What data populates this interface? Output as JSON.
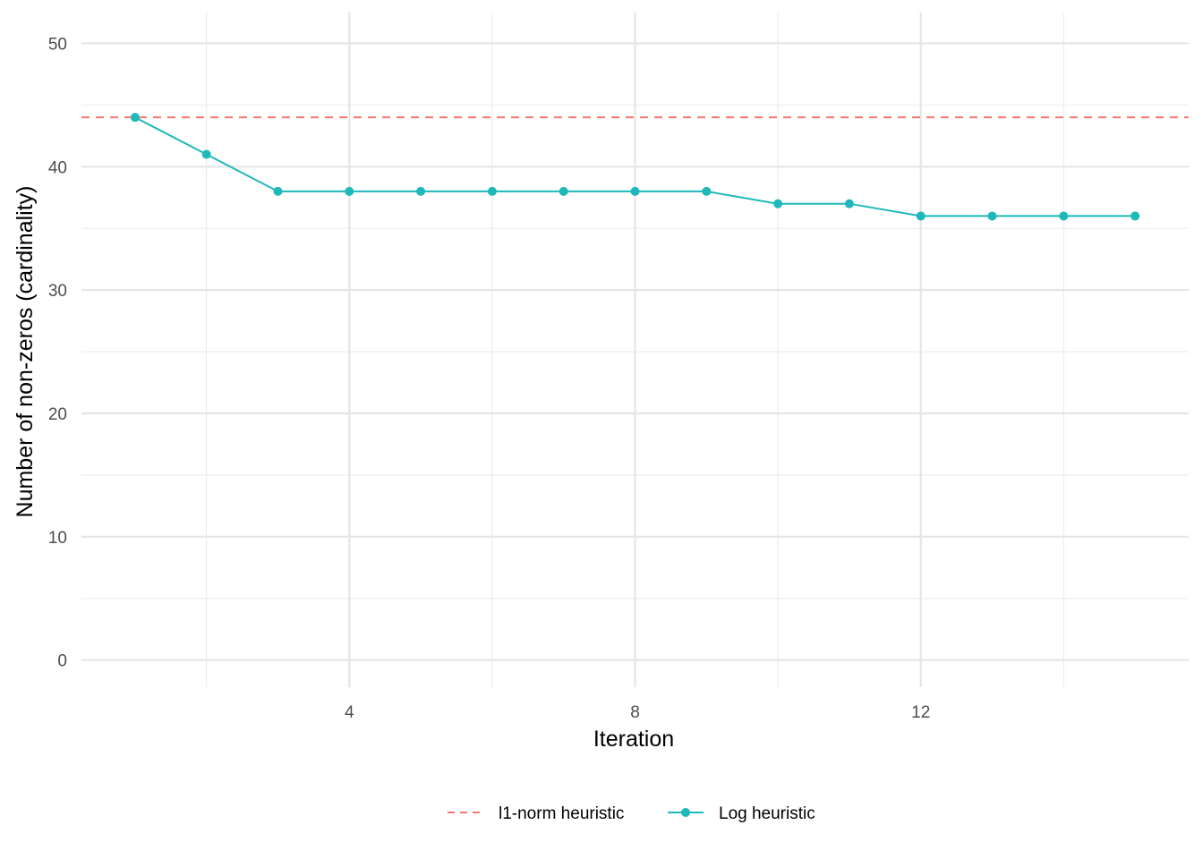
{
  "chart_data": {
    "type": "line",
    "title": "",
    "xlabel": "Iteration",
    "ylabel": "Number of non-zeros (cardinality)",
    "xlim": [
      0.25,
      15.75
    ],
    "ylim": [
      -2.2,
      52.5
    ],
    "x_ticks": [
      4,
      8,
      12
    ],
    "y_ticks": [
      0,
      10,
      20,
      30,
      40,
      50
    ],
    "grid": true,
    "legend_position": "bottom",
    "reference_lines": [
      {
        "name": "l1-norm heuristic",
        "y": 44,
        "color": "#F8766D",
        "style": "dashed"
      }
    ],
    "series": [
      {
        "name": "Log heuristic",
        "color": "#1FB8BA",
        "x": [
          1,
          2,
          3,
          4,
          5,
          6,
          7,
          8,
          9,
          10,
          11,
          12,
          13,
          14,
          15
        ],
        "values": [
          44,
          41,
          38,
          38,
          38,
          38,
          38,
          38,
          38,
          37,
          37,
          36,
          36,
          36,
          36
        ]
      }
    ]
  }
}
